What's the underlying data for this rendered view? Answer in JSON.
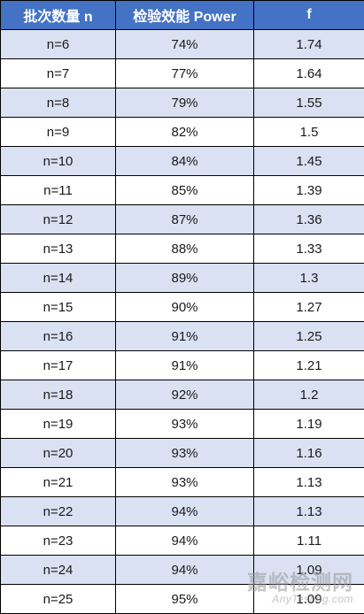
{
  "table": {
    "columns": [
      "批次数量 n",
      "检验效能 Power",
      "f"
    ],
    "rows": [
      {
        "n": "n=6",
        "power": "74%",
        "f": "1.74"
      },
      {
        "n": "n=7",
        "power": "77%",
        "f": "1.64"
      },
      {
        "n": "n=8",
        "power": "79%",
        "f": "1.55"
      },
      {
        "n": "n=9",
        "power": "82%",
        "f": "1.5"
      },
      {
        "n": "n=10",
        "power": "84%",
        "f": "1.45"
      },
      {
        "n": "n=11",
        "power": "85%",
        "f": "1.39"
      },
      {
        "n": "n=12",
        "power": "87%",
        "f": "1.36"
      },
      {
        "n": "n=13",
        "power": "88%",
        "f": "1.33"
      },
      {
        "n": "n=14",
        "power": "89%",
        "f": "1.3"
      },
      {
        "n": "n=15",
        "power": "90%",
        "f": "1.27"
      },
      {
        "n": "n=16",
        "power": "91%",
        "f": "1.25"
      },
      {
        "n": "n=17",
        "power": "91%",
        "f": "1.21"
      },
      {
        "n": "n=18",
        "power": "92%",
        "f": "1.2"
      },
      {
        "n": "n=19",
        "power": "93%",
        "f": "1.19"
      },
      {
        "n": "n=20",
        "power": "93%",
        "f": "1.16"
      },
      {
        "n": "n=21",
        "power": "93%",
        "f": "1.13"
      },
      {
        "n": "n=22",
        "power": "94%",
        "f": "1.13"
      },
      {
        "n": "n=23",
        "power": "94%",
        "f": "1.11"
      },
      {
        "n": "n=24",
        "power": "94%",
        "f": "1.09"
      },
      {
        "n": "n=25",
        "power": "95%",
        "f": "1.09"
      }
    ]
  },
  "watermark": {
    "cn": "嘉峪检测网",
    "en": "AnyTesting.com"
  },
  "colors": {
    "header_bg": "#4472c4",
    "header_text": "#ffffff",
    "band_odd": "#d9e1f2",
    "band_even": "#ffffff",
    "border": "#000000"
  }
}
